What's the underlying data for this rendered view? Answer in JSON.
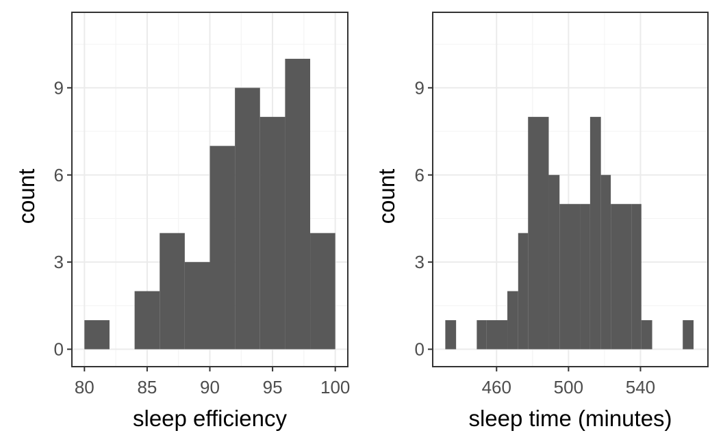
{
  "colors": {
    "bar_fill": "#595959",
    "panel_border": "#333333",
    "grid_major": "#ebebeb",
    "grid_minor": "#f4f4f4",
    "tick_label": "#4d4d4d",
    "axis_title": "#000000",
    "background": "#ffffff"
  },
  "chart_data": [
    {
      "type": "bar",
      "subtype": "histogram",
      "xlabel": "sleep efficiency",
      "ylabel": "count",
      "grid": true,
      "xlim": [
        79,
        101
      ],
      "ylim": [
        -0.6,
        11.6
      ],
      "xticks": [
        80,
        85,
        90,
        95,
        100
      ],
      "xtick_labels": [
        "80",
        "85",
        "90",
        "95",
        "100"
      ],
      "yticks": [
        0,
        3,
        6,
        9
      ],
      "ytick_labels": [
        "0",
        "3",
        "6",
        "9"
      ],
      "bins": [
        {
          "start": 80,
          "end": 82,
          "count": 1
        },
        {
          "start": 82,
          "end": 84,
          "count": 0
        },
        {
          "start": 84,
          "end": 86,
          "count": 2
        },
        {
          "start": 86,
          "end": 88,
          "count": 4
        },
        {
          "start": 88,
          "end": 90,
          "count": 3
        },
        {
          "start": 90,
          "end": 92,
          "count": 7
        },
        {
          "start": 92,
          "end": 94,
          "count": 9
        },
        {
          "start": 94,
          "end": 96,
          "count": 8
        },
        {
          "start": 96,
          "end": 98,
          "count": 10
        },
        {
          "start": 98,
          "end": 100,
          "count": 4
        }
      ]
    },
    {
      "type": "bar",
      "subtype": "histogram",
      "xlabel": "sleep time (minutes)",
      "ylabel": "count",
      "grid": true,
      "xlim": [
        424.5,
        577.5
      ],
      "ylim": [
        -0.6,
        11.6
      ],
      "xticks": [
        460,
        500,
        540
      ],
      "xtick_labels": [
        "460",
        "500",
        "540"
      ],
      "yticks": [
        0,
        3,
        6,
        9
      ],
      "ytick_labels": [
        "0",
        "3",
        "6",
        "9"
      ],
      "bins": [
        {
          "start": 431.5,
          "end": 437.5,
          "count": 1
        },
        {
          "start": 437.5,
          "end": 449,
          "count": 0
        },
        {
          "start": 449,
          "end": 454.5,
          "count": 1
        },
        {
          "start": 454.5,
          "end": 466,
          "count": 1
        },
        {
          "start": 466,
          "end": 472,
          "count": 2
        },
        {
          "start": 472,
          "end": 477.5,
          "count": 4
        },
        {
          "start": 477.5,
          "end": 489,
          "count": 8
        },
        {
          "start": 489,
          "end": 495,
          "count": 6
        },
        {
          "start": 495,
          "end": 506.5,
          "count": 5
        },
        {
          "start": 506.5,
          "end": 512,
          "count": 5
        },
        {
          "start": 512,
          "end": 518,
          "count": 8
        },
        {
          "start": 518,
          "end": 523.5,
          "count": 6
        },
        {
          "start": 523.5,
          "end": 535,
          "count": 5
        },
        {
          "start": 535,
          "end": 540.5,
          "count": 5
        },
        {
          "start": 540.5,
          "end": 546.5,
          "count": 1
        },
        {
          "start": 546.5,
          "end": 563.5,
          "count": 0
        },
        {
          "start": 563.5,
          "end": 569.5,
          "count": 1
        }
      ]
    }
  ]
}
